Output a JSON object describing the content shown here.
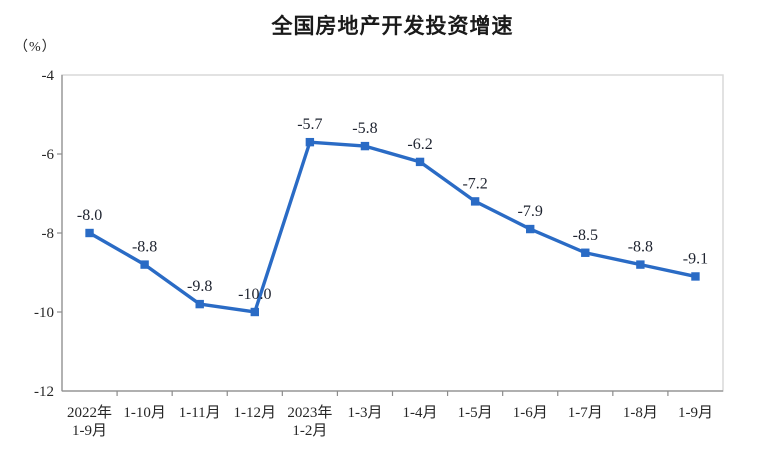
{
  "header": {
    "title": "全国房地产开发投资增速",
    "unit_label": "（%）"
  },
  "chart_data": {
    "type": "line",
    "title": "全国房地产开发投资增速",
    "unit": "%",
    "categories": [
      "2022年\n1-9月",
      "1-10月",
      "1-11月",
      "1-12月",
      "2023年\n1-2月",
      "1-3月",
      "1-4月",
      "1-5月",
      "1-6月",
      "1-7月",
      "1-8月",
      "1-9月"
    ],
    "values": [
      -8.0,
      -8.8,
      -9.8,
      -10.0,
      -5.7,
      -5.8,
      -6.2,
      -7.2,
      -7.9,
      -8.5,
      -8.8,
      -9.1
    ],
    "point_labels": [
      "-8.0",
      "-8.8",
      "-9.8",
      "-10.0",
      "-5.7",
      "-5.8",
      "-6.2",
      "-7.2",
      "-7.9",
      "-8.5",
      "-8.8",
      "-9.1"
    ],
    "y_ticks": [
      "-4",
      "-6",
      "-8",
      "-10",
      "-12"
    ],
    "y_tick_values": [
      -4,
      -6,
      -8,
      -10,
      -12
    ],
    "ylim": [
      -12,
      -4
    ],
    "grid": false,
    "legend": "none",
    "marker": "square",
    "colors": {
      "line": "#2a6bc5",
      "marker": "#2a6bc5",
      "axis": "#8c8c8c",
      "plot_border": "#d9d9d9",
      "text": "#262626"
    }
  }
}
